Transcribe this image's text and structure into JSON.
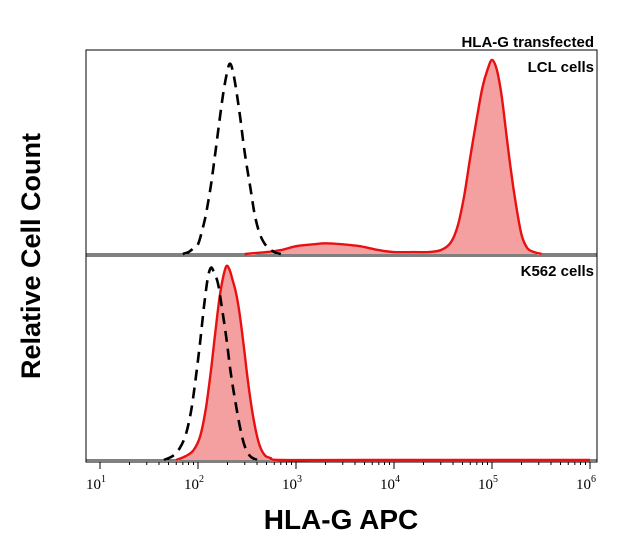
{
  "chart_data": {
    "type": "area",
    "title": "HLA-G transfected",
    "xlabel": "HLA-G APC",
    "ylabel": "Relative Cell Count",
    "x_scale": "log",
    "xlim": [
      10,
      1000000
    ],
    "x_ticks": [
      {
        "value": 10,
        "base": "10",
        "exp": "1"
      },
      {
        "value": 100,
        "base": "10",
        "exp": "2"
      },
      {
        "value": 1000,
        "base": "10",
        "exp": "3"
      },
      {
        "value": 10000,
        "base": "10",
        "exp": "4"
      },
      {
        "value": 100000,
        "base": "10",
        "exp": "5"
      },
      {
        "value": 1000000,
        "base": "10",
        "exp": "6"
      }
    ],
    "grid": false,
    "panels": [
      {
        "label": "LCL cells",
        "ylim": [
          0,
          1
        ],
        "series": [
          {
            "style": "dashed",
            "color": "#000000",
            "fill": "none",
            "points": [
              [
                70,
                0.0
              ],
              [
                80,
                0.01
              ],
              [
                90,
                0.03
              ],
              [
                100,
                0.05
              ],
              [
                110,
                0.12
              ],
              [
                120,
                0.2
              ],
              [
                135,
                0.35
              ],
              [
                150,
                0.52
              ],
              [
                165,
                0.68
              ],
              [
                180,
                0.82
              ],
              [
                195,
                0.92
              ],
              [
                210,
                0.98
              ],
              [
                225,
                0.95
              ],
              [
                245,
                0.85
              ],
              [
                270,
                0.7
              ],
              [
                300,
                0.52
              ],
              [
                340,
                0.35
              ],
              [
                380,
                0.2
              ],
              [
                430,
                0.1
              ],
              [
                500,
                0.04
              ],
              [
                600,
                0.01
              ],
              [
                700,
                0.0
              ]
            ]
          },
          {
            "style": "solid",
            "color": "#e81010",
            "fill": "#f4a0a0",
            "points": [
              [
                300,
                0.0
              ],
              [
                500,
                0.01
              ],
              [
                700,
                0.02
              ],
              [
                1000,
                0.04
              ],
              [
                1500,
                0.05
              ],
              [
                2000,
                0.055
              ],
              [
                3000,
                0.05
              ],
              [
                4500,
                0.04
              ],
              [
                7000,
                0.02
              ],
              [
                10000,
                0.01
              ],
              [
                16000,
                0.01
              ],
              [
                22000,
                0.01
              ],
              [
                30000,
                0.02
              ],
              [
                38000,
                0.06
              ],
              [
                45000,
                0.15
              ],
              [
                52000,
                0.3
              ],
              [
                60000,
                0.5
              ],
              [
                70000,
                0.7
              ],
              [
                80000,
                0.86
              ],
              [
                90000,
                0.95
              ],
              [
                100000,
                1.0
              ],
              [
                112000,
                0.95
              ],
              [
                125000,
                0.82
              ],
              [
                140000,
                0.62
              ],
              [
                155000,
                0.44
              ],
              [
                175000,
                0.26
              ],
              [
                200000,
                0.1
              ],
              [
                230000,
                0.03
              ],
              [
                270000,
                0.01
              ],
              [
                320000,
                0.0
              ]
            ]
          }
        ]
      },
      {
        "label": "K562 cells",
        "ylim": [
          0,
          1
        ],
        "series": [
          {
            "style": "dashed",
            "color": "#000000",
            "fill": "none",
            "points": [
              [
                45,
                0.0
              ],
              [
                55,
                0.02
              ],
              [
                65,
                0.06
              ],
              [
                75,
                0.13
              ],
              [
                85,
                0.25
              ],
              [
                95,
                0.42
              ],
              [
                105,
                0.6
              ],
              [
                115,
                0.78
              ],
              [
                125,
                0.92
              ],
              [
                135,
                0.98
              ],
              [
                145,
                0.96
              ],
              [
                160,
                0.9
              ],
              [
                175,
                0.78
              ],
              [
                195,
                0.62
              ],
              [
                215,
                0.45
              ],
              [
                240,
                0.3
              ],
              [
                270,
                0.16
              ],
              [
                300,
                0.07
              ],
              [
                340,
                0.02
              ],
              [
                400,
                0.0
              ]
            ]
          },
          {
            "style": "solid",
            "color": "#e81010",
            "fill": "#f4a0a0",
            "points": [
              [
                60,
                0.0
              ],
              [
                75,
                0.02
              ],
              [
                90,
                0.05
              ],
              [
                105,
                0.12
              ],
              [
                120,
                0.26
              ],
              [
                135,
                0.45
              ],
              [
                150,
                0.65
              ],
              [
                165,
                0.82
              ],
              [
                180,
                0.93
              ],
              [
                195,
                0.99
              ],
              [
                210,
                0.97
              ],
              [
                225,
                0.92
              ],
              [
                245,
                0.85
              ],
              [
                265,
                0.75
              ],
              [
                290,
                0.6
              ],
              [
                320,
                0.42
              ],
              [
                360,
                0.24
              ],
              [
                410,
                0.1
              ],
              [
                470,
                0.03
              ],
              [
                550,
                0.01
              ],
              [
                700,
                0.0
              ],
              [
                5000,
                0.0
              ],
              [
                1000000,
                0.0
              ]
            ]
          }
        ]
      }
    ]
  }
}
